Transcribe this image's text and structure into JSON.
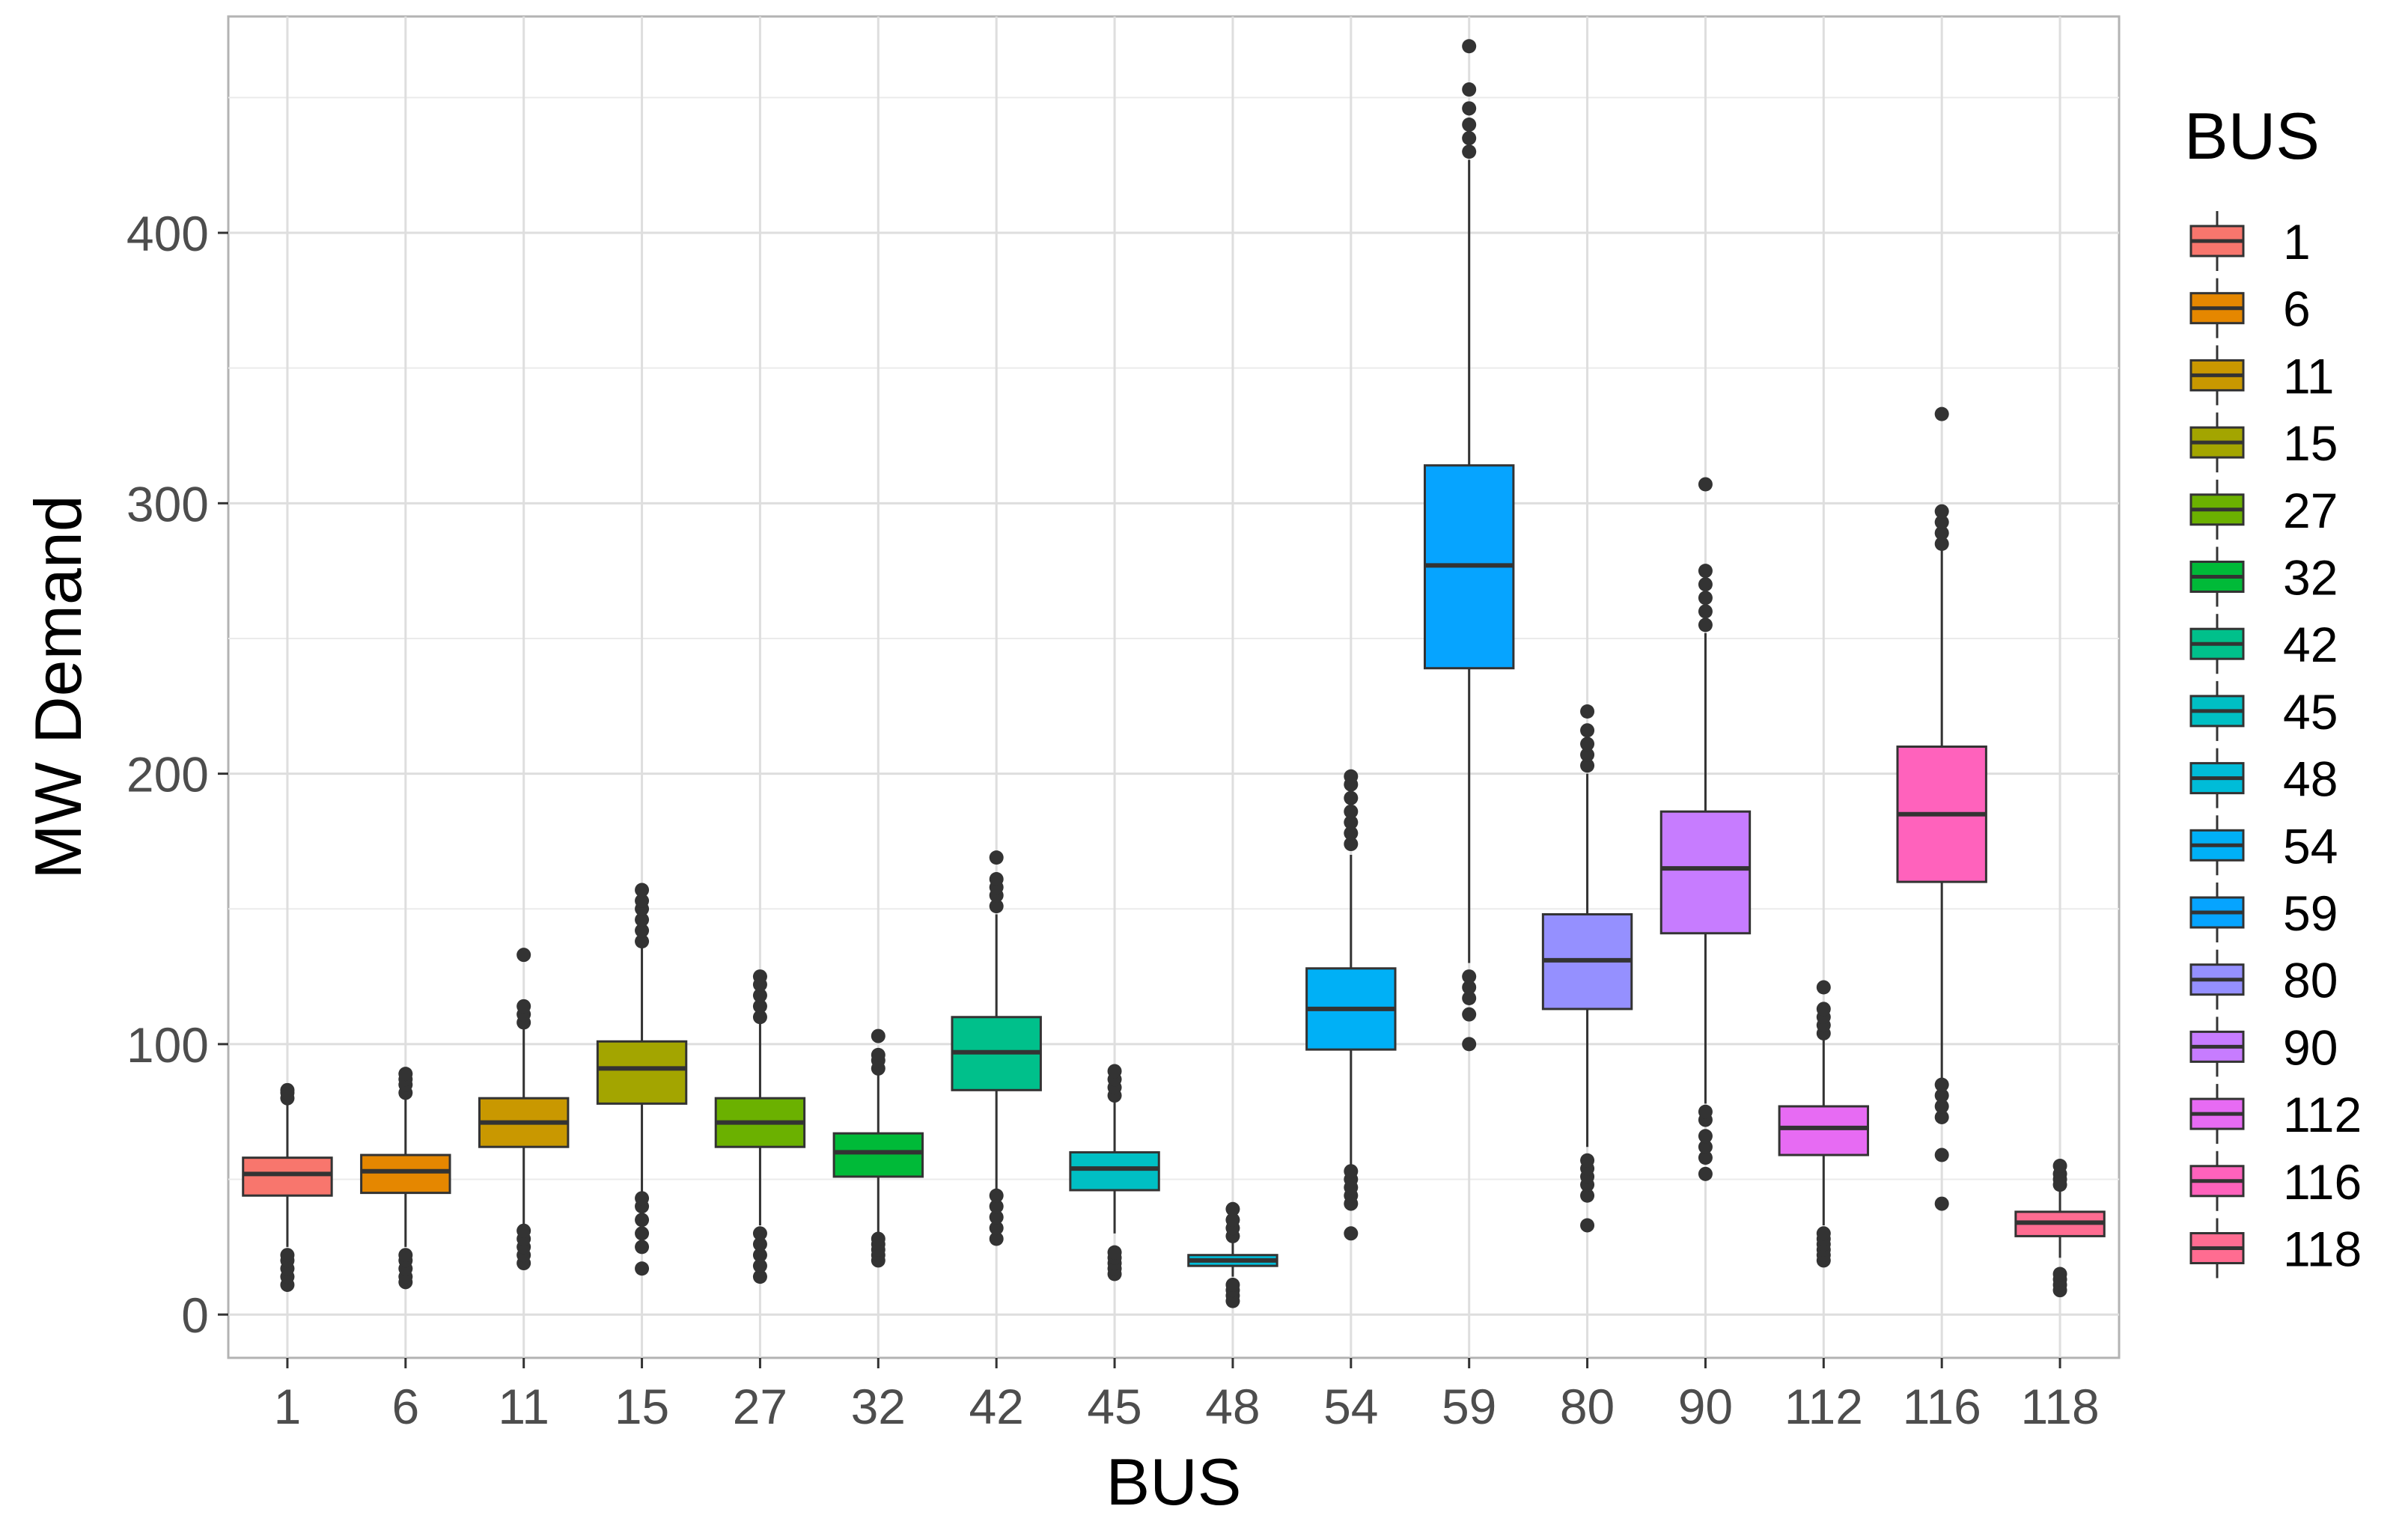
{
  "chart_data": {
    "type": "boxplot",
    "title": "",
    "xlabel": "BUS",
    "ylabel": "MW Demand",
    "ylim": [
      -16,
      480
    ],
    "yticks": [
      0,
      100,
      200,
      300,
      400
    ],
    "grid": true,
    "legend": {
      "title": "BUS",
      "position": "right"
    },
    "categories": [
      "1",
      "6",
      "11",
      "15",
      "27",
      "32",
      "42",
      "45",
      "48",
      "54",
      "59",
      "80",
      "90",
      "112",
      "116",
      "118"
    ],
    "colors": [
      "#F8766D",
      "#E58700",
      "#C99800",
      "#A3A500",
      "#6BB100",
      "#00BA38",
      "#00C08B",
      "#00BFC4",
      "#00BCD8",
      "#00B0F6",
      "#06A4FF",
      "#9590FF",
      "#C77CFF",
      "#E76BF3",
      "#FF62BC",
      "#FF6C91"
    ],
    "boxes": [
      {
        "bus": "1",
        "whisker_low": 25,
        "q1": 44,
        "median": 52,
        "q3": 58,
        "whisker_high": 78,
        "outliers": [
          11,
          14,
          17,
          20,
          22,
          80,
          82,
          83
        ]
      },
      {
        "bus": "6",
        "whisker_low": 25,
        "q1": 45,
        "median": 53,
        "q3": 59,
        "whisker_high": 80,
        "outliers": [
          12,
          14,
          17,
          20,
          22,
          82,
          85,
          87,
          89
        ]
      },
      {
        "bus": "11",
        "whisker_low": 33,
        "q1": 62,
        "median": 71,
        "q3": 80,
        "whisker_high": 106,
        "outliers": [
          19,
          22,
          25,
          28,
          31,
          108,
          111,
          114,
          133
        ]
      },
      {
        "bus": "15",
        "whisker_low": 45,
        "q1": 78,
        "median": 91,
        "q3": 101,
        "whisker_high": 136,
        "outliers": [
          17,
          25,
          30,
          35,
          40,
          43,
          138,
          142,
          146,
          150,
          153,
          157
        ]
      },
      {
        "bus": "27",
        "whisker_low": 33,
        "q1": 62,
        "median": 71,
        "q3": 80,
        "whisker_high": 108,
        "outliers": [
          14,
          18,
          22,
          26,
          30,
          110,
          114,
          118,
          122,
          125
        ]
      },
      {
        "bus": "32",
        "whisker_low": 30,
        "q1": 51,
        "median": 60,
        "q3": 67,
        "whisker_high": 89,
        "outliers": [
          20,
          22,
          24,
          26,
          28,
          91,
          94,
          96,
          103
        ]
      },
      {
        "bus": "42",
        "whisker_low": 45,
        "q1": 83,
        "median": 97,
        "q3": 110,
        "whisker_high": 148,
        "outliers": [
          28,
          32,
          36,
          40,
          44,
          151,
          155,
          158,
          161,
          169
        ]
      },
      {
        "bus": "45",
        "whisker_low": 30,
        "q1": 46,
        "median": 54,
        "q3": 60,
        "whisker_high": 80,
        "outliers": [
          15,
          17,
          19,
          21,
          23,
          81,
          84,
          87,
          90
        ]
      },
      {
        "bus": "48",
        "whisker_low": 14,
        "q1": 18,
        "median": 20,
        "q3": 22,
        "whisker_high": 27,
        "outliers": [
          5,
          7,
          9,
          11,
          29,
          32,
          35,
          39
        ]
      },
      {
        "bus": "54",
        "whisker_low": 55,
        "q1": 98,
        "median": 113,
        "q3": 128,
        "whisker_high": 170,
        "outliers": [
          30,
          41,
          44,
          47,
          50,
          53,
          174,
          178,
          182,
          186,
          191,
          196,
          199
        ]
      },
      {
        "bus": "59",
        "whisker_low": 130,
        "q1": 239,
        "median": 277,
        "q3": 314,
        "whisker_high": 427,
        "outliers": [
          100,
          111,
          117,
          121,
          125,
          430,
          435,
          440,
          446,
          453,
          469
        ]
      },
      {
        "bus": "80",
        "whisker_low": 62,
        "q1": 113,
        "median": 131,
        "q3": 148,
        "whisker_high": 200,
        "outliers": [
          33,
          44,
          48,
          51,
          54,
          57,
          203,
          207,
          211,
          216,
          223
        ]
      },
      {
        "bus": "90",
        "whisker_low": 78,
        "q1": 141,
        "median": 165,
        "q3": 186,
        "whisker_high": 252,
        "outliers": [
          52,
          58,
          62,
          66,
          72,
          75,
          255,
          260,
          265,
          270,
          275,
          307
        ]
      },
      {
        "bus": "112",
        "whisker_low": 33,
        "q1": 59,
        "median": 69,
        "q3": 77,
        "whisker_high": 102,
        "outliers": [
          20,
          22,
          24,
          26,
          28,
          30,
          104,
          107,
          110,
          113,
          121
        ]
      },
      {
        "bus": "116",
        "whisker_low": 87,
        "q1": 160,
        "median": 185,
        "q3": 210,
        "whisker_high": 283,
        "outliers": [
          41,
          59,
          73,
          77,
          81,
          85,
          285,
          289,
          293,
          297,
          333
        ]
      },
      {
        "bus": "118",
        "whisker_low": 21,
        "q1": 29,
        "median": 34,
        "q3": 38,
        "whisker_high": 46,
        "outliers": [
          9,
          11,
          13,
          15,
          48,
          50,
          52,
          55
        ]
      }
    ]
  }
}
